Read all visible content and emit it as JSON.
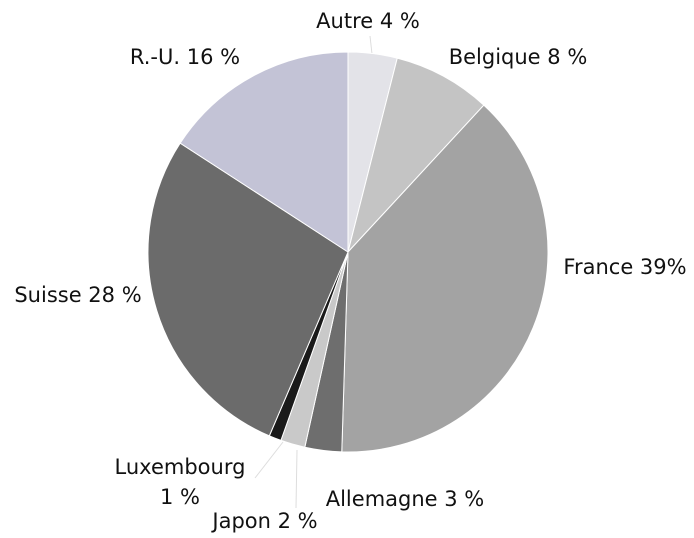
{
  "chart_data": {
    "type": "pie",
    "labels": [
      [
        "Autre 4 %"
      ],
      [
        "Belgique 8 %"
      ],
      [
        "France 39%"
      ],
      [
        "Allemagne 3 %"
      ],
      [
        "Japon 2 %"
      ],
      [
        "Luxembourg",
        "1 %"
      ],
      [
        "Suisse 28 %"
      ],
      [
        "R.-U. 16 %"
      ]
    ],
    "values": [
      4,
      8,
      39,
      3,
      2,
      1,
      28,
      16
    ],
    "colors": [
      "#e3e3e8",
      "#c4c4c4",
      "#a3a3a3",
      "#6e6e6e",
      "#c9c9c9",
      "#1a1a1a",
      "#6b6b6b",
      "#c3c3d6"
    ]
  }
}
